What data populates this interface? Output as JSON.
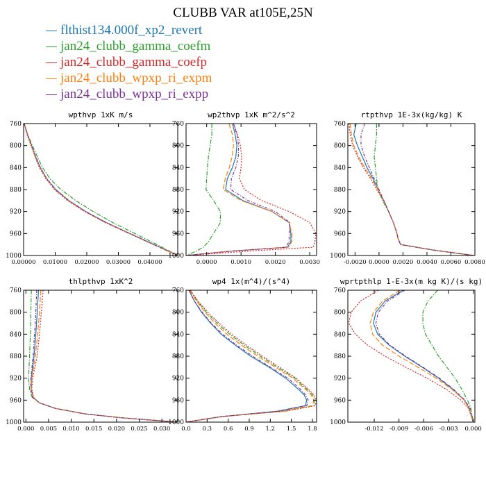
{
  "page": {
    "title": "CLUBB VAR at105E,25N"
  },
  "legend": [
    {
      "label": "flthist134.000f_xp2_revert",
      "color": "#1f77b4"
    },
    {
      "label": "jan24_clubb_gamma_coefm",
      "color": "#2ca02c"
    },
    {
      "label": "jan24_clubb_gamma_coefp",
      "color": "#d62728"
    },
    {
      "label": "jan24_clubb_wpxp_ri_expm",
      "color": "#ff7f0e"
    },
    {
      "label": "jan24_clubb_wpxp_ri_expp",
      "color": "#7b3294"
    }
  ],
  "chart_data": [
    {
      "type": "line",
      "title": "wpthvp   1xK m/s",
      "xlim": [
        0,
        0.0488
      ],
      "ylim": [
        760,
        1000
      ],
      "y_inverted": true,
      "xticks": [
        0,
        0.01,
        0.02,
        0.03,
        0.04
      ],
      "xticklabels": [
        "0.00000",
        "0.01000",
        "0.02000",
        "0.03000",
        "0.04000"
      ],
      "yticks": [
        760,
        800,
        840,
        880,
        920,
        960,
        1000
      ],
      "y": [
        760,
        780,
        800,
        820,
        840,
        860,
        880,
        900,
        920,
        940,
        960,
        980,
        1000
      ],
      "series": [
        {
          "values": [
            0.0002,
            0.0012,
            0.0025,
            0.0038,
            0.0053,
            0.0073,
            0.0102,
            0.0143,
            0.0197,
            0.0262,
            0.0337,
            0.0413,
            0.0488
          ]
        },
        {
          "values": [
            0.0002,
            0.0013,
            0.0028,
            0.0043,
            0.006,
            0.0083,
            0.0118,
            0.0165,
            0.022,
            0.0282,
            0.0352,
            0.0422,
            0.0488
          ]
        },
        {
          "values": [
            0.0002,
            0.0011,
            0.0024,
            0.0036,
            0.005,
            0.007,
            0.0098,
            0.0139,
            0.0193,
            0.0258,
            0.0334,
            0.0411,
            0.0488
          ]
        },
        {
          "values": [
            0.0002,
            0.0012,
            0.0024,
            0.0037,
            0.0052,
            0.0072,
            0.01,
            0.0141,
            0.0195,
            0.026,
            0.0335,
            0.0412,
            0.0488
          ]
        },
        {
          "values": [
            0.0002,
            0.0012,
            0.0025,
            0.0038,
            0.0053,
            0.0073,
            0.0101,
            0.0142,
            0.0196,
            0.0261,
            0.0336,
            0.0412,
            0.0488
          ]
        }
      ]
    },
    {
      "type": "line",
      "title": "wp2thvp   1xK m^2/s^2",
      "xlim": [
        -0.0006,
        0.0032
      ],
      "ylim": [
        760,
        1000
      ],
      "y_inverted": true,
      "xticks": [
        0,
        0.001,
        0.002,
        0.003
      ],
      "xticklabels": [
        "0.0000",
        "0.0010",
        "0.0020",
        "0.0030"
      ],
      "yticks": [
        760,
        800,
        840,
        880,
        920,
        960,
        1000
      ],
      "y": [
        760,
        780,
        800,
        820,
        840,
        860,
        880,
        900,
        920,
        940,
        960,
        975,
        985,
        992,
        1000
      ],
      "series": [
        {
          "values": [
            0.00075,
            0.00083,
            0.00088,
            0.00085,
            0.00075,
            0.0006,
            0.00055,
            0.00105,
            0.0019,
            0.0024,
            0.00245,
            0.00245,
            0.00235,
            0.0007,
            -0.0006
          ]
        },
        {
          "values": [
            0.00015,
            0.00015,
            0.0001,
            5e-05,
            2e-05,
            0.0,
            -2e-05,
            0.0002,
            0.0004,
            0.0004,
            0.0002,
            5e-05,
            -0.0001,
            -0.0003,
            -0.0006
          ]
        },
        {
          "values": [
            0.00078,
            0.0009,
            0.00098,
            0.00102,
            0.001,
            0.00095,
            0.0011,
            0.0016,
            0.0024,
            0.003,
            0.00318,
            0.00315,
            0.0031,
            0.0012,
            -0.0006
          ]
        },
        {
          "values": [
            0.00065,
            0.00075,
            0.00078,
            0.00074,
            0.00066,
            0.00054,
            0.00048,
            0.001,
            0.0019,
            0.0024,
            0.00248,
            0.00248,
            0.00238,
            0.0007,
            -0.0006
          ]
        },
        {
          "values": [
            0.00078,
            0.00088,
            0.00093,
            0.00092,
            0.00085,
            0.00072,
            0.0007,
            0.0012,
            0.002,
            0.00242,
            0.0024,
            0.0024,
            0.0023,
            0.0007,
            -0.0006
          ]
        }
      ]
    },
    {
      "type": "line",
      "title": "rtpthvp   1E-3x(kg/kg) K",
      "xlim": [
        -0.0026,
        0.008
      ],
      "ylim": [
        760,
        1000
      ],
      "y_inverted": true,
      "xticks": [
        -0.002,
        0,
        0.002,
        0.004,
        0.006,
        0.008
      ],
      "xticklabels": [
        "-0.0020",
        "0.0000",
        "0.0020",
        "0.0040",
        "0.0060",
        "0.0080"
      ],
      "yticks": [
        760,
        800,
        840,
        880,
        920,
        960,
        1000
      ],
      "y": [
        760,
        780,
        800,
        820,
        840,
        860,
        880,
        900,
        920,
        940,
        960,
        970,
        980,
        990,
        1000
      ],
      "series": [
        {
          "values": [
            -0.0019,
            -0.0021,
            -0.0018,
            -0.0014,
            -0.001,
            -0.0005,
            -0.0001,
            0.0004,
            0.0008,
            0.0012,
            0.0015,
            0.0016,
            0.0018,
            0.0045,
            0.0079
          ]
        },
        {
          "values": [
            -0.0002,
            -0.0002,
            -0.0003,
            -0.0004,
            -0.0003,
            -0.0002,
            -0.0001,
            0.0003,
            0.0008,
            0.0012,
            0.0015,
            0.0016,
            0.0018,
            0.0045,
            0.0079
          ]
        },
        {
          "values": [
            -0.0025,
            -0.0024,
            -0.0022,
            -0.0018,
            -0.0013,
            -0.0007,
            -0.0002,
            0.0004,
            0.0008,
            0.0012,
            0.0015,
            0.0016,
            0.0018,
            0.0045,
            0.0079
          ]
        },
        {
          "values": [
            -0.0024,
            -0.0023,
            -0.0021,
            -0.0017,
            -0.0012,
            -0.0006,
            -0.0001,
            0.0004,
            0.0008,
            0.0012,
            0.0015,
            0.0016,
            0.0018,
            0.0045,
            0.0079
          ]
        },
        {
          "values": [
            -0.0012,
            -0.0015,
            -0.0015,
            -0.0012,
            -0.0008,
            -0.0004,
            0.0,
            0.0004,
            0.0008,
            0.0012,
            0.0015,
            0.0016,
            0.0018,
            0.0045,
            0.0079
          ]
        }
      ]
    },
    {
      "type": "line",
      "title": "thlpthvp   1xK^2",
      "xlim": [
        -0.0005,
        0.0335
      ],
      "ylim": [
        760,
        1000
      ],
      "y_inverted": true,
      "xticks": [
        0,
        0.005,
        0.01,
        0.015,
        0.02,
        0.025,
        0.03
      ],
      "xticklabels": [
        "0.000",
        "0.005",
        "0.010",
        "0.015",
        "0.020",
        "0.025",
        "0.030"
      ],
      "yticks": [
        760,
        800,
        840,
        880,
        920,
        960,
        1000
      ],
      "y": [
        760,
        800,
        840,
        880,
        920,
        940,
        955,
        965,
        975,
        985,
        992,
        1000
      ],
      "series": [
        {
          "values": [
            0.0028,
            0.0025,
            0.0022,
            0.0018,
            0.0012,
            0.0012,
            0.0016,
            0.003,
            0.0065,
            0.013,
            0.021,
            0.0335
          ]
        },
        {
          "values": [
            0.0012,
            0.0011,
            0.001,
            0.0008,
            0.0006,
            0.0008,
            0.0014,
            0.003,
            0.0065,
            0.013,
            0.021,
            0.0335
          ]
        },
        {
          "values": [
            0.0038,
            0.0034,
            0.003,
            0.0025,
            0.0015,
            0.0013,
            0.0017,
            0.003,
            0.0065,
            0.013,
            0.021,
            0.0335
          ]
        },
        {
          "values": [
            0.0033,
            0.003,
            0.0026,
            0.0021,
            0.0013,
            0.0012,
            0.0016,
            0.003,
            0.0065,
            0.013,
            0.021,
            0.0335
          ]
        },
        {
          "values": [
            0.0024,
            0.0022,
            0.0019,
            0.0016,
            0.0011,
            0.0011,
            0.0015,
            0.003,
            0.0065,
            0.013,
            0.021,
            0.0335
          ]
        }
      ]
    },
    {
      "type": "line",
      "title": "wp4   1x(m^4)/(s^4)",
      "xlim": [
        0,
        1.86
      ],
      "ylim": [
        760,
        1000
      ],
      "y_inverted": true,
      "xticks": [
        0,
        0.3,
        0.6,
        0.9,
        1.2,
        1.5,
        1.8
      ],
      "xticklabels": [
        "0.0",
        "0.3",
        "0.6",
        "0.9",
        "1.2",
        "1.5",
        "1.8"
      ],
      "yticks": [
        760,
        800,
        840,
        880,
        920,
        960,
        1000
      ],
      "y": [
        760,
        780,
        800,
        820,
        840,
        860,
        880,
        900,
        920,
        940,
        950,
        960,
        970,
        980,
        990,
        1000
      ],
      "series": [
        {
          "values": [
            0.04,
            0.12,
            0.22,
            0.35,
            0.5,
            0.7,
            0.92,
            1.18,
            1.42,
            1.6,
            1.68,
            1.72,
            1.7,
            1.3,
            0.5,
            0.0
          ]
        },
        {
          "values": [
            0.06,
            0.16,
            0.29,
            0.44,
            0.62,
            0.83,
            1.06,
            1.3,
            1.55,
            1.72,
            1.8,
            1.84,
            1.82,
            1.4,
            0.5,
            0.0
          ]
        },
        {
          "values": [
            0.06,
            0.17,
            0.31,
            0.47,
            0.65,
            0.86,
            1.09,
            1.33,
            1.57,
            1.74,
            1.82,
            1.86,
            1.84,
            1.42,
            0.5,
            0.0
          ]
        },
        {
          "values": [
            0.05,
            0.15,
            0.27,
            0.41,
            0.58,
            0.79,
            1.02,
            1.27,
            1.52,
            1.7,
            1.78,
            1.82,
            1.8,
            1.38,
            0.5,
            0.0
          ]
        },
        {
          "values": [
            0.04,
            0.12,
            0.23,
            0.36,
            0.52,
            0.72,
            0.95,
            1.2,
            1.45,
            1.63,
            1.7,
            1.74,
            1.72,
            1.32,
            0.5,
            0.0
          ]
        }
      ]
    },
    {
      "type": "line",
      "title": "wprtpthlp   1-E-3x(m kg K)/(s kg)",
      "xlim": [
        -0.0152,
        0.0002
      ],
      "ylim": [
        760,
        1000
      ],
      "y_inverted": true,
      "xticks": [
        -0.012,
        -0.009,
        -0.006,
        -0.003,
        0.0
      ],
      "xticklabels": [
        "-0.012",
        "-0.009",
        "-0.006",
        "-0.003",
        "0.000"
      ],
      "yticks": [
        760,
        800,
        840,
        880,
        920,
        960,
        1000
      ],
      "y": [
        760,
        780,
        800,
        820,
        840,
        860,
        880,
        900,
        920,
        940,
        960,
        975,
        990,
        1000
      ],
      "series": [
        {
          "values": [
            -0.0085,
            -0.0107,
            -0.0118,
            -0.0121,
            -0.0116,
            -0.0102,
            -0.0083,
            -0.0062,
            -0.0042,
            -0.0025,
            -0.0011,
            -0.0005,
            -0.0002,
            0.0
          ]
        },
        {
          "values": [
            -0.0043,
            -0.0055,
            -0.0061,
            -0.0061,
            -0.0058,
            -0.005,
            -0.0042,
            -0.0032,
            -0.0022,
            -0.0014,
            -0.0007,
            -0.0003,
            -0.0001,
            0.0
          ]
        },
        {
          "values": [
            -0.0115,
            -0.0137,
            -0.0148,
            -0.0151,
            -0.0143,
            -0.0128,
            -0.0107,
            -0.0082,
            -0.0056,
            -0.0033,
            -0.0015,
            -0.0006,
            -0.0002,
            0.0
          ]
        },
        {
          "values": [
            -0.0089,
            -0.011,
            -0.0121,
            -0.0125,
            -0.0122,
            -0.011,
            -0.009,
            -0.0067,
            -0.0045,
            -0.0026,
            -0.0011,
            -0.0005,
            -0.0002,
            0.0
          ]
        },
        {
          "values": [
            -0.0083,
            -0.0104,
            -0.0115,
            -0.0118,
            -0.0114,
            -0.0101,
            -0.0082,
            -0.0061,
            -0.0041,
            -0.0024,
            -0.001,
            -0.0004,
            -0.0002,
            0.0
          ]
        }
      ]
    }
  ]
}
